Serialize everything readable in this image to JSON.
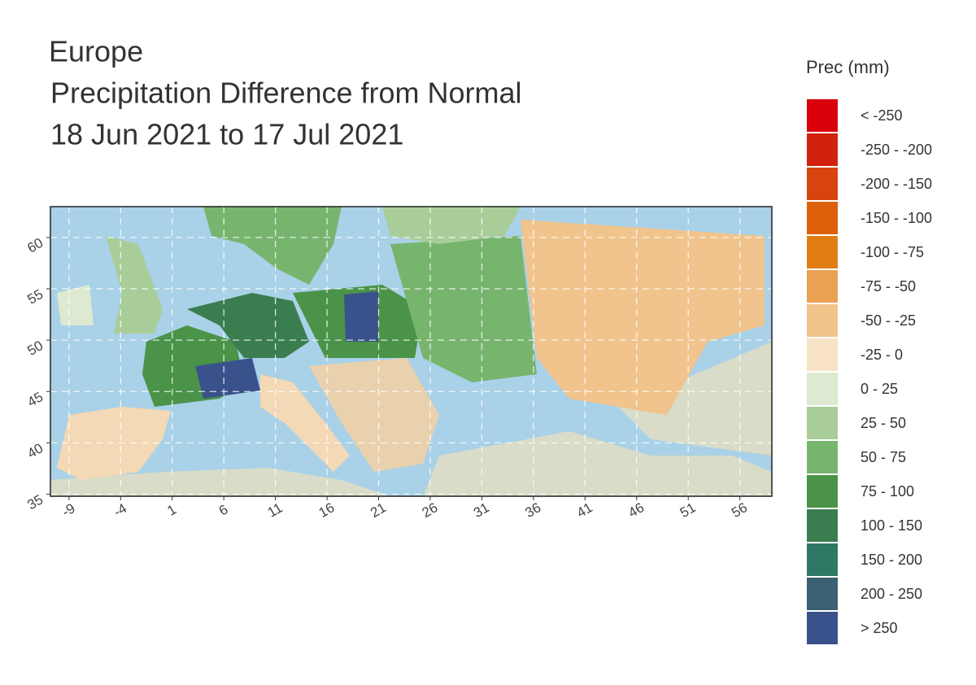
{
  "title": [
    "Europe",
    "Precipitation Difference from Normal",
    "18 Jun 2021 to 17 Jul 2021"
  ],
  "map": {
    "xlim": [
      -10.8,
      59.1
    ],
    "ylim": [
      34.8,
      63
    ],
    "xticks": [
      -9,
      -4,
      1,
      6,
      11,
      16,
      21,
      26,
      31,
      36,
      41,
      46,
      51,
      56
    ],
    "yticks": [
      35,
      40,
      45,
      50,
      55,
      60
    ],
    "grid": true
  },
  "legend": {
    "title": "Prec (mm)",
    "items": [
      {
        "label": "< -250",
        "color": "#d9000b"
      },
      {
        "label": "-250 - -200",
        "color": "#d2220e"
      },
      {
        "label": "-200 - -150",
        "color": "#d8440d"
      },
      {
        "label": "-150 - -100",
        "color": "#dd610b"
      },
      {
        "label": "-100 - -75",
        "color": "#e07e14"
      },
      {
        "label": "-75 - -50",
        "color": "#eaa153"
      },
      {
        "label": "-50 - -25",
        "color": "#f2c48b"
      },
      {
        "label": "-25 - 0",
        "color": "#f8e3c7"
      },
      {
        "label": "0 - 25",
        "color": "#dde9d1"
      },
      {
        "label": "25 - 50",
        "color": "#a9cd99"
      },
      {
        "label": "50 - 75",
        "color": "#77b56f"
      },
      {
        "label": "75 - 100",
        "color": "#4a9348"
      },
      {
        "label": "100 - 150",
        "color": "#3a7e50"
      },
      {
        "label": "150 - 200",
        "color": "#2e7865"
      },
      {
        "label": "200 - 250",
        "color": "#3a6071"
      },
      {
        "label": "> 250",
        "color": "#3a528b"
      }
    ]
  }
}
